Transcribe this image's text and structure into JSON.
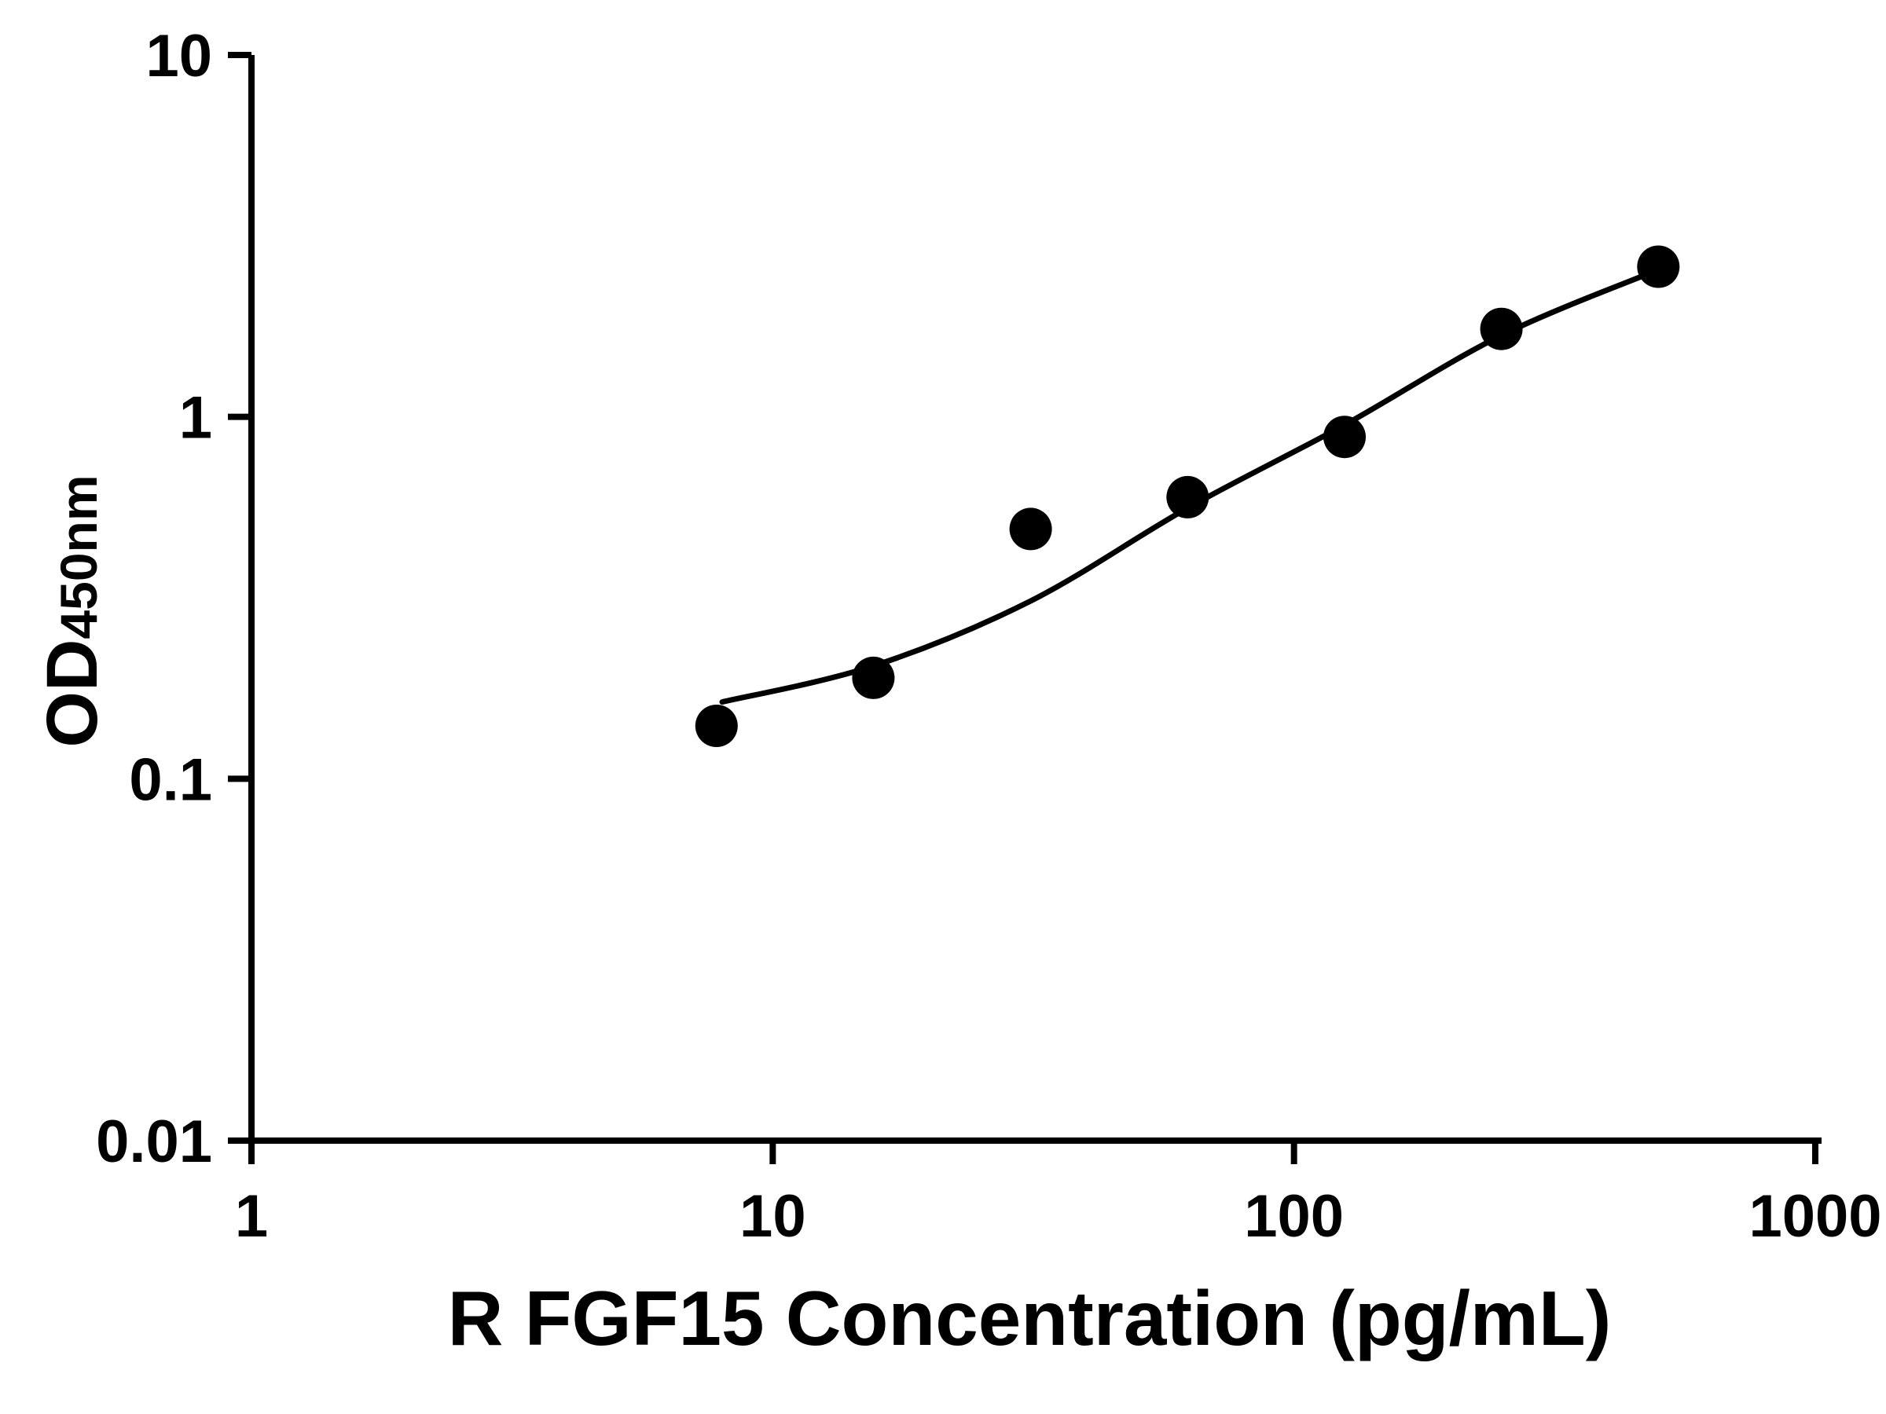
{
  "chart_data": {
    "type": "scatter",
    "xlabel": "R FGF15 Concentration (pg/mL)",
    "ylabel_main": "OD",
    "ylabel_sub": "450nm",
    "x_scale": "log",
    "y_scale": "log",
    "xlim": [
      1,
      1000
    ],
    "ylim": [
      0.01,
      10
    ],
    "x_ticks": [
      1,
      10,
      100,
      1000
    ],
    "x_tick_labels": [
      "1",
      "10",
      "100",
      "1000"
    ],
    "y_ticks": [
      0.01,
      0.1,
      1,
      10
    ],
    "y_tick_labels": [
      "0.01",
      "0.1",
      "1",
      "10"
    ],
    "grid": "off",
    "legend": "none",
    "points": [
      {
        "x": 7.8,
        "y": 0.14
      },
      {
        "x": 15.6,
        "y": 0.19
      },
      {
        "x": 31.25,
        "y": 0.49
      },
      {
        "x": 62.5,
        "y": 0.6
      },
      {
        "x": 125,
        "y": 0.88
      },
      {
        "x": 250,
        "y": 1.75
      },
      {
        "x": 500,
        "y": 2.6
      }
    ],
    "fit_curve": [
      {
        "x": 8,
        "y": 0.163
      },
      {
        "x": 15.6,
        "y": 0.205
      },
      {
        "x": 31.25,
        "y": 0.31
      },
      {
        "x": 62.5,
        "y": 0.56
      },
      {
        "x": 125,
        "y": 0.95
      },
      {
        "x": 250,
        "y": 1.68
      },
      {
        "x": 500,
        "y": 2.55
      }
    ],
    "colors": {
      "points": "#000000",
      "curve": "#000000",
      "axis": "#000000",
      "background": "#ffffff"
    }
  }
}
